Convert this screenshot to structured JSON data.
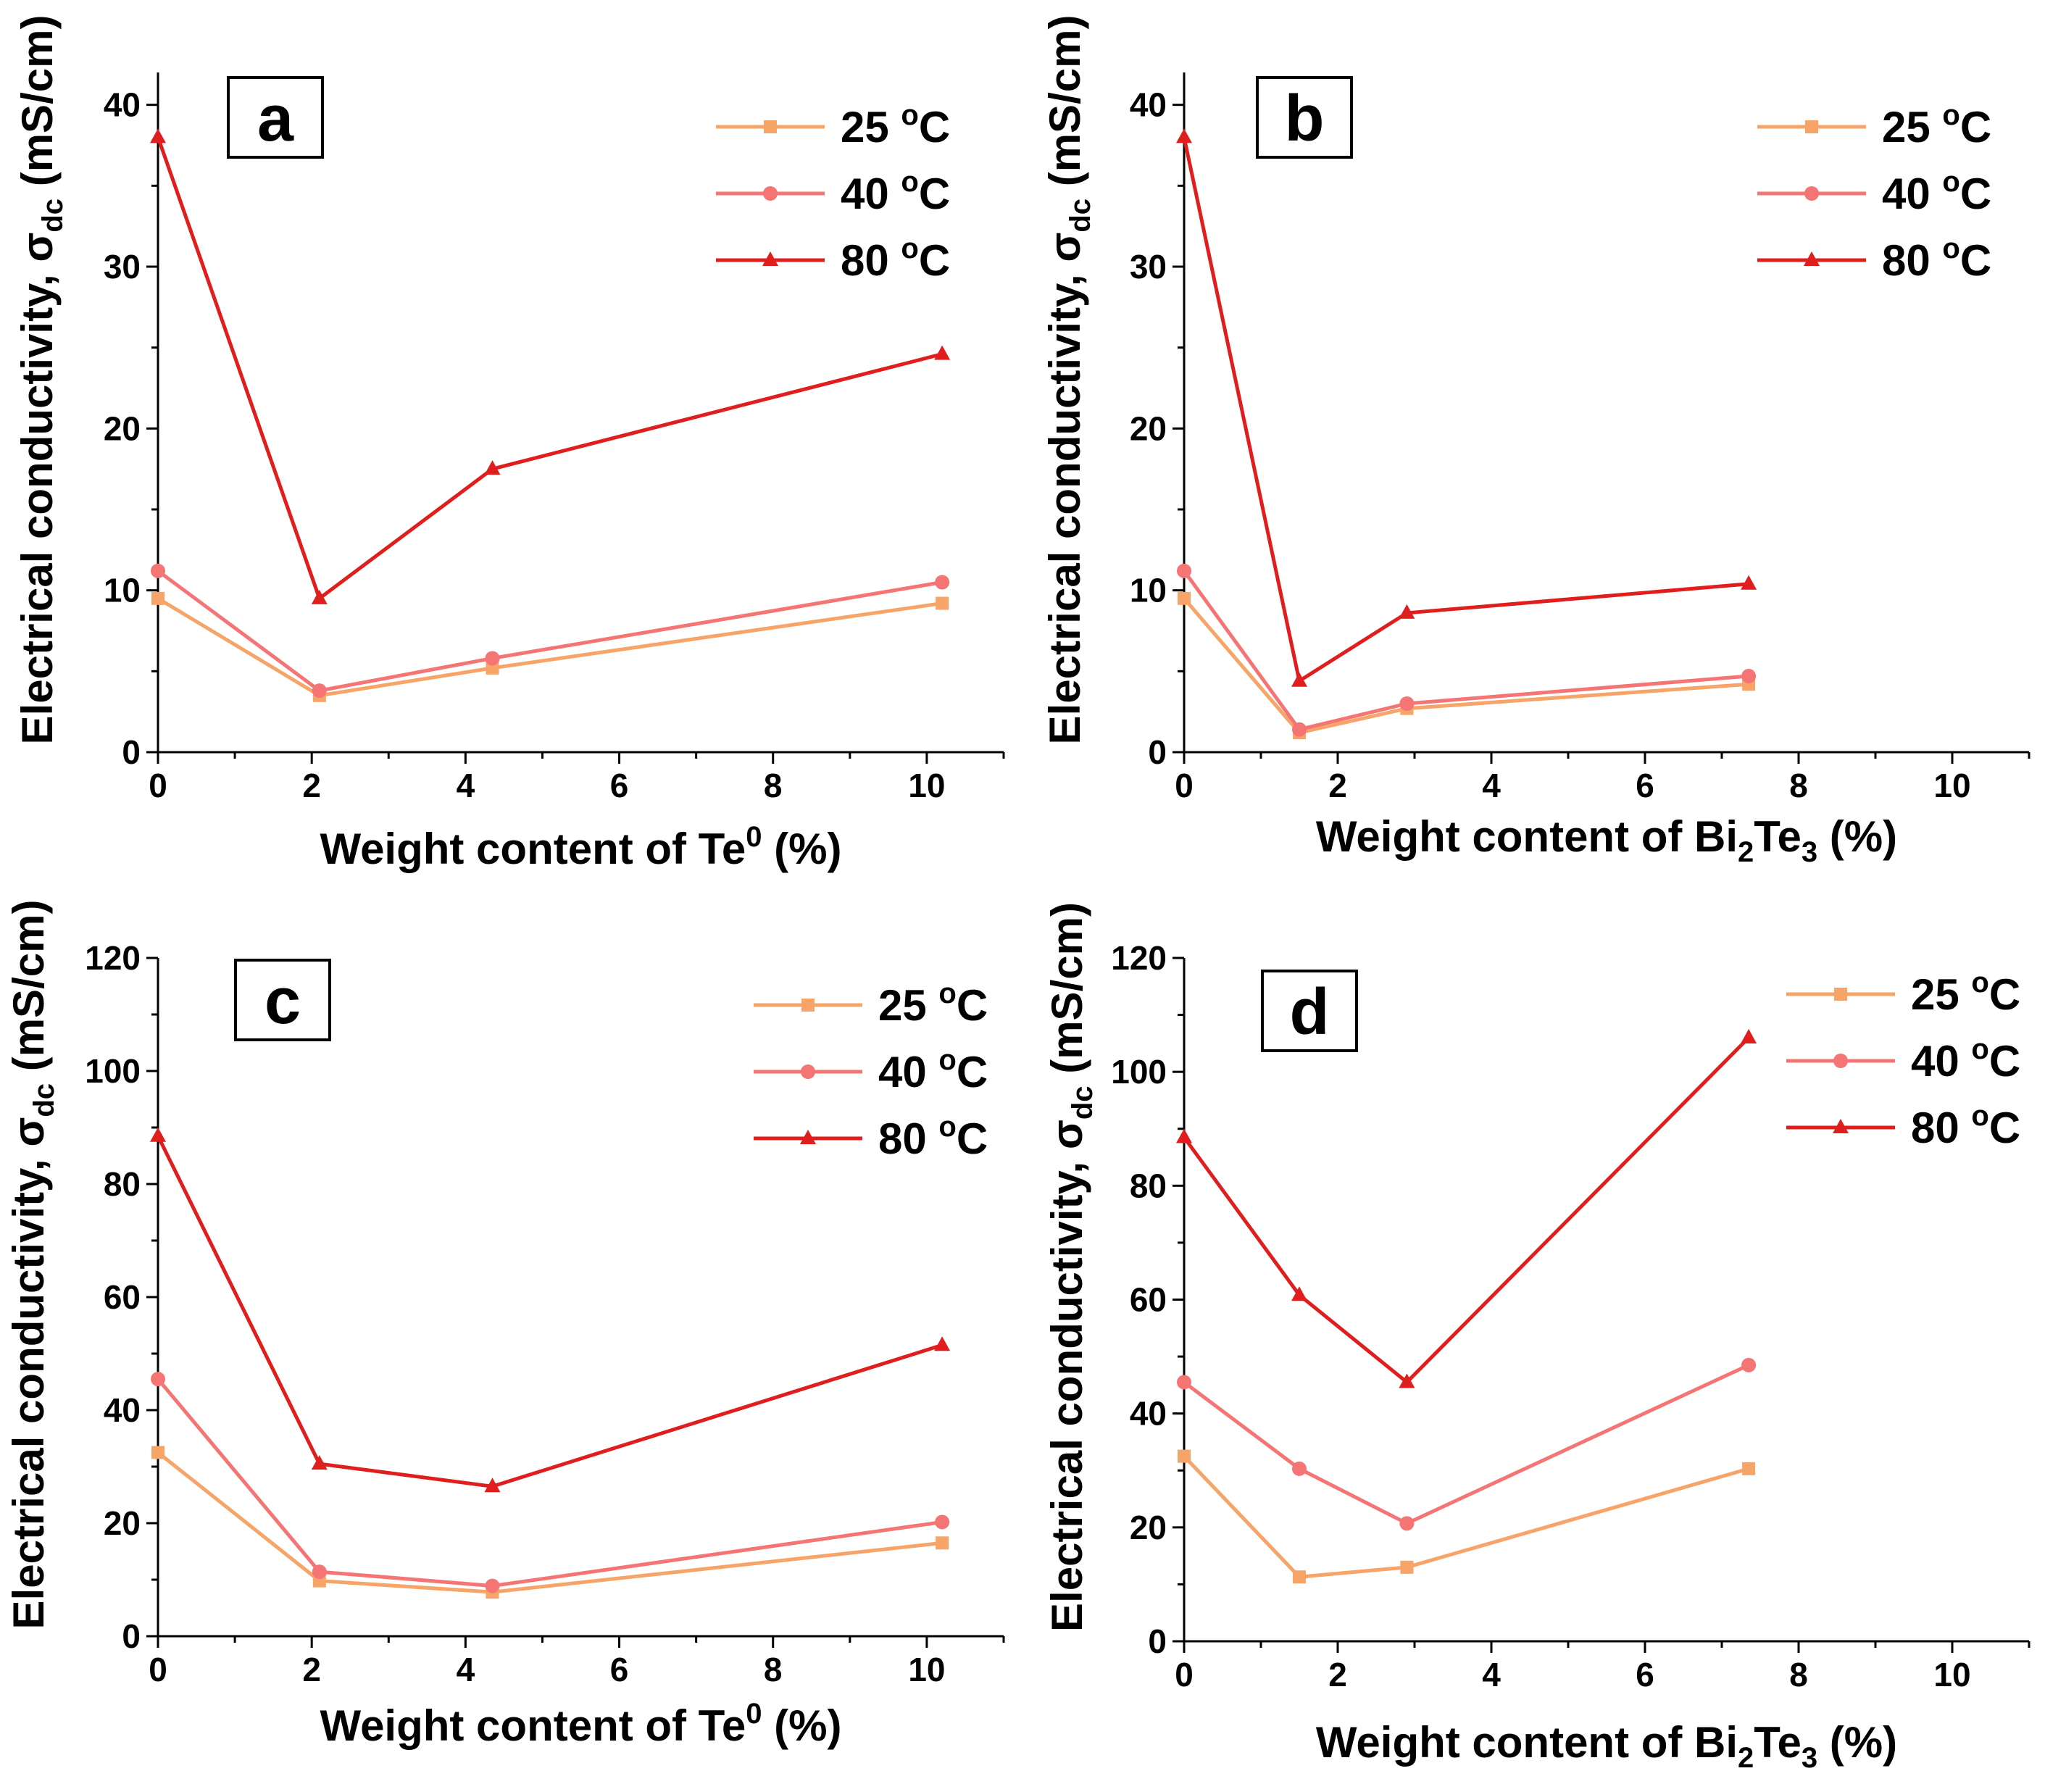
{
  "chart_data": [
    {
      "type": "line",
      "panel_label": "a",
      "xlabel": "Weight content of Te",
      "xlabel_sup": "0",
      "xlabel_suffix": " (%)",
      "ylabel": "Electrical conductivity, σ",
      "ylabel_sub": "dc",
      "ylabel_suffix": " (mS/cm)",
      "xlim": [
        0,
        11
      ],
      "ylim": [
        0,
        42
      ],
      "xticks": [
        0,
        2,
        4,
        6,
        8,
        10
      ],
      "yticks": [
        0,
        10,
        20,
        30,
        40
      ],
      "x": [
        0,
        2.1,
        4.35,
        10.2
      ],
      "series": [
        {
          "name": "25 °C",
          "legend_value": "25 ",
          "legend_sup": "o",
          "legend_unit": "C",
          "values": [
            9.5,
            3.5,
            5.2,
            9.2
          ],
          "color": "#f7a468",
          "marker": "square"
        },
        {
          "name": "40 °C",
          "legend_value": "40 ",
          "legend_sup": "o",
          "legend_unit": "C",
          "values": [
            11.2,
            3.8,
            5.8,
            10.5
          ],
          "color": "#f57575",
          "marker": "circle"
        },
        {
          "name": "80 °C",
          "legend_value": "80 ",
          "legend_sup": "o",
          "legend_unit": "C",
          "values": [
            38,
            9.5,
            17.5,
            24.6
          ],
          "color": "#e01e1e",
          "marker": "triangle"
        }
      ]
    },
    {
      "type": "line",
      "panel_label": "b",
      "xlabel": "Weight content of Bi",
      "xlabel_sub1": "2",
      "xlabel_mid": "Te",
      "xlabel_sub2": "3",
      "xlabel_suffix": " (%)",
      "ylabel": "Electrical conductivity, σ",
      "ylabel_sub": "dc",
      "ylabel_suffix": " (mS/cm)",
      "xlim": [
        0,
        11
      ],
      "ylim": [
        0,
        42
      ],
      "xticks": [
        0,
        2,
        4,
        6,
        8,
        10
      ],
      "yticks": [
        0,
        10,
        20,
        30,
        40
      ],
      "x": [
        0,
        1.5,
        2.9,
        7.35
      ],
      "series": [
        {
          "name": "25 °C",
          "legend_value": "25 ",
          "legend_sup": "o",
          "legend_unit": "C",
          "values": [
            9.5,
            1.2,
            2.7,
            4.2
          ],
          "color": "#f7a468",
          "marker": "square"
        },
        {
          "name": "40 °C",
          "legend_value": "40 ",
          "legend_sup": "o",
          "legend_unit": "C",
          "values": [
            11.2,
            1.4,
            3.0,
            4.7
          ],
          "color": "#f57575",
          "marker": "circle"
        },
        {
          "name": "80 °C",
          "legend_value": "80 ",
          "legend_sup": "o",
          "legend_unit": "C",
          "values": [
            38,
            4.4,
            8.6,
            10.4
          ],
          "color": "#e01e1e",
          "marker": "triangle"
        }
      ]
    },
    {
      "type": "line",
      "panel_label": "c",
      "xlabel": "Weight content of Te",
      "xlabel_sup": "0",
      "xlabel_suffix": " (%)",
      "ylabel": "Electrical conductivity, σ",
      "ylabel_sub": "dc",
      "ylabel_suffix": " (mS/cm)",
      "xlim": [
        0,
        11
      ],
      "ylim": [
        0,
        120
      ],
      "xticks": [
        0,
        2,
        4,
        6,
        8,
        10
      ],
      "yticks": [
        0,
        20,
        40,
        60,
        80,
        100,
        120
      ],
      "x": [
        0,
        2.1,
        4.35,
        10.2
      ],
      "series": [
        {
          "name": "25 °C",
          "legend_value": "25 ",
          "legend_sup": "o",
          "legend_unit": "C",
          "values": [
            32.5,
            9.8,
            7.8,
            16.5
          ],
          "color": "#f7a468",
          "marker": "square"
        },
        {
          "name": "40 °C",
          "legend_value": "40 ",
          "legend_sup": "o",
          "legend_unit": "C",
          "values": [
            45.5,
            11.4,
            8.9,
            20.2
          ],
          "color": "#f57575",
          "marker": "circle"
        },
        {
          "name": "80 °C",
          "legend_value": "80 ",
          "legend_sup": "o",
          "legend_unit": "C",
          "values": [
            88.5,
            30.5,
            26.5,
            51.5
          ],
          "color": "#e01e1e",
          "marker": "triangle"
        }
      ]
    },
    {
      "type": "line",
      "panel_label": "d",
      "xlabel": "Weight content of Bi",
      "xlabel_sub1": "2",
      "xlabel_mid": "Te",
      "xlabel_sub2": "3",
      "xlabel_suffix": " (%)",
      "ylabel": "Electrical conductivity, σ",
      "ylabel_sub": "dc",
      "ylabel_suffix": " (mS/cm)",
      "xlim": [
        0,
        11
      ],
      "ylim": [
        0,
        120
      ],
      "xticks": [
        0,
        2,
        4,
        6,
        8,
        10
      ],
      "yticks": [
        0,
        20,
        40,
        60,
        80,
        100,
        120
      ],
      "x": [
        0,
        1.5,
        2.9,
        7.35
      ],
      "series": [
        {
          "name": "25 °C",
          "legend_value": "25 ",
          "legend_sup": "o",
          "legend_unit": "C",
          "values": [
            32.5,
            11.3,
            13.0,
            30.3
          ],
          "color": "#f7a468",
          "marker": "square"
        },
        {
          "name": "40 °C",
          "legend_value": "40 ",
          "legend_sup": "o",
          "legend_unit": "C",
          "values": [
            45.5,
            30.3,
            20.7,
            48.5
          ],
          "color": "#f57575",
          "marker": "circle"
        },
        {
          "name": "80 °C",
          "legend_value": "80 ",
          "legend_sup": "o",
          "legend_unit": "C",
          "values": [
            88.5,
            60.8,
            45.5,
            106.0
          ],
          "color": "#e01e1e",
          "marker": "triangle"
        }
      ]
    }
  ]
}
